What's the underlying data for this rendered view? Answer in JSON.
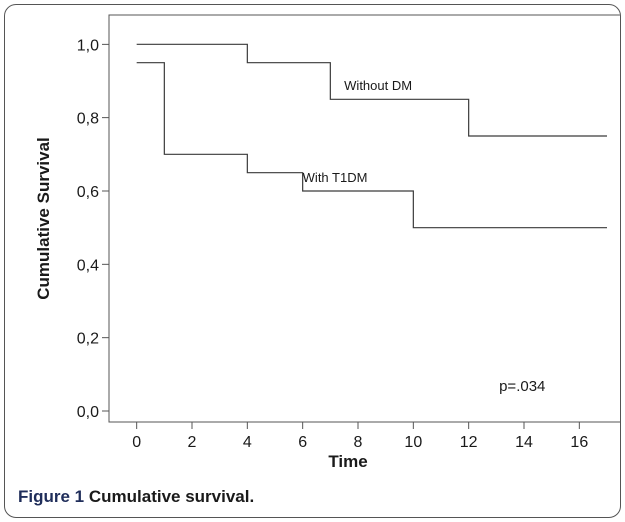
{
  "caption": {
    "label": "Figure 1",
    "text": "Cumulative survival."
  },
  "chart_data": {
    "type": "line",
    "step": true,
    "xlabel": "Time",
    "ylabel": "Cumulative Survival",
    "xlim": [
      -1,
      17
    ],
    "ylim": [
      -0.03,
      1.08
    ],
    "xticks": [
      0,
      2,
      4,
      6,
      8,
      10,
      12,
      14,
      16
    ],
    "xtick_labels": [
      "0",
      "2",
      "4",
      "6",
      "8",
      "10",
      "12",
      "14",
      "16"
    ],
    "yticks": [
      0.0,
      0.2,
      0.4,
      0.6,
      0.8,
      1.0
    ],
    "ytick_labels": [
      "0,0",
      "0,2",
      "0,4",
      "0,6",
      "0,8",
      "1,0"
    ],
    "grid": false,
    "series": [
      {
        "name": "Without DM",
        "x": [
          0,
          4,
          7,
          12,
          17
        ],
        "y": [
          1.0,
          0.95,
          0.85,
          0.75,
          0.75
        ]
      },
      {
        "name": "With T1DM",
        "x": [
          0,
          1,
          4,
          6,
          10,
          17
        ],
        "y": [
          0.95,
          0.7,
          0.65,
          0.6,
          0.5,
          0.5
        ]
      }
    ],
    "labels": [
      {
        "text": "Without DM",
        "x": 7.5,
        "y": 0.875
      },
      {
        "text": "With T1DM",
        "x": 6.0,
        "y": 0.625
      }
    ],
    "annotations": [
      {
        "text": "p=.034",
        "x": 13.1,
        "y": 0.055
      }
    ],
    "colors": {
      "line": "#3a3a3a",
      "axis": "#555555",
      "text": "#1a1a1a"
    }
  }
}
